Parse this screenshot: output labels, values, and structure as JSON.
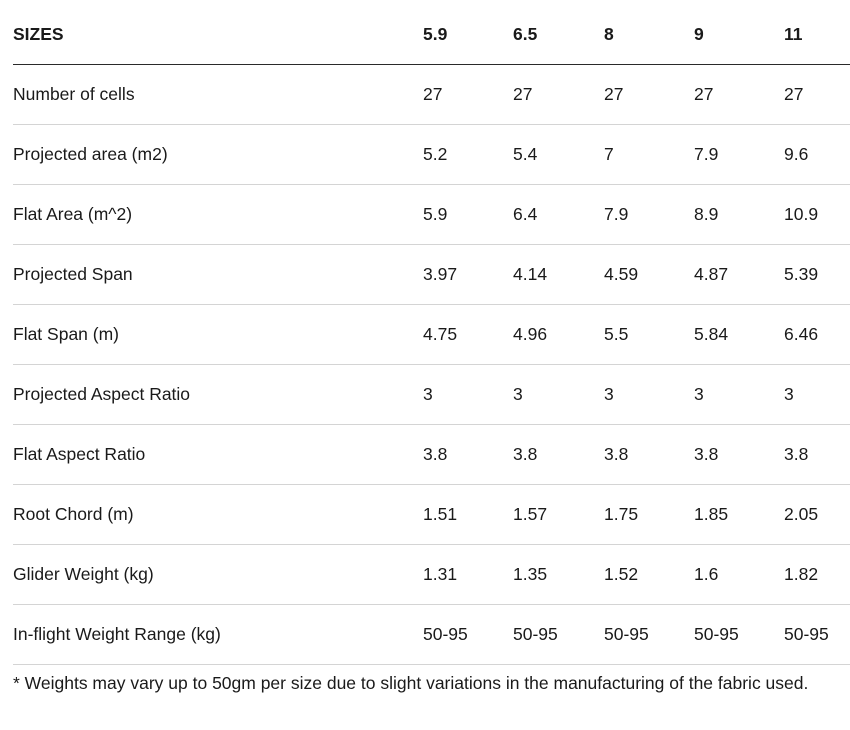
{
  "table": {
    "headers": [
      "SIZES",
      "5.9",
      "6.5",
      "8",
      "9",
      "11"
    ],
    "rows": [
      [
        "Number of cells",
        "27",
        "27",
        "27",
        "27",
        "27"
      ],
      [
        "Projected area (m2)",
        "5.2",
        "5.4",
        "7",
        "7.9",
        "9.6"
      ],
      [
        "Flat Area (m^2)",
        "5.9",
        "6.4",
        "7.9",
        "8.9",
        "10.9"
      ],
      [
        "Projected Span",
        "3.97",
        "4.14",
        "4.59",
        "4.87",
        "5.39"
      ],
      [
        "Flat Span (m)",
        "4.75",
        "4.96",
        "5.5",
        "5.84",
        "6.46"
      ],
      [
        "Projected Aspect Ratio",
        "3",
        "3",
        "3",
        "3",
        "3"
      ],
      [
        "Flat Aspect Ratio",
        "3.8",
        "3.8",
        "3.8",
        "3.8",
        "3.8"
      ],
      [
        "Root Chord (m)",
        "1.51",
        "1.57",
        "1.75",
        "1.85",
        "2.05"
      ],
      [
        "Glider Weight (kg)",
        "1.31",
        "1.35",
        "1.52",
        "1.6",
        "1.82"
      ],
      [
        "In-flight Weight Range (kg)",
        "50-95",
        "50-95",
        "50-95",
        "50-95",
        "50-95"
      ]
    ]
  },
  "footnote": "* Weights may vary up to 50gm per size due to slight variations in the manufacturing of the fabric used."
}
